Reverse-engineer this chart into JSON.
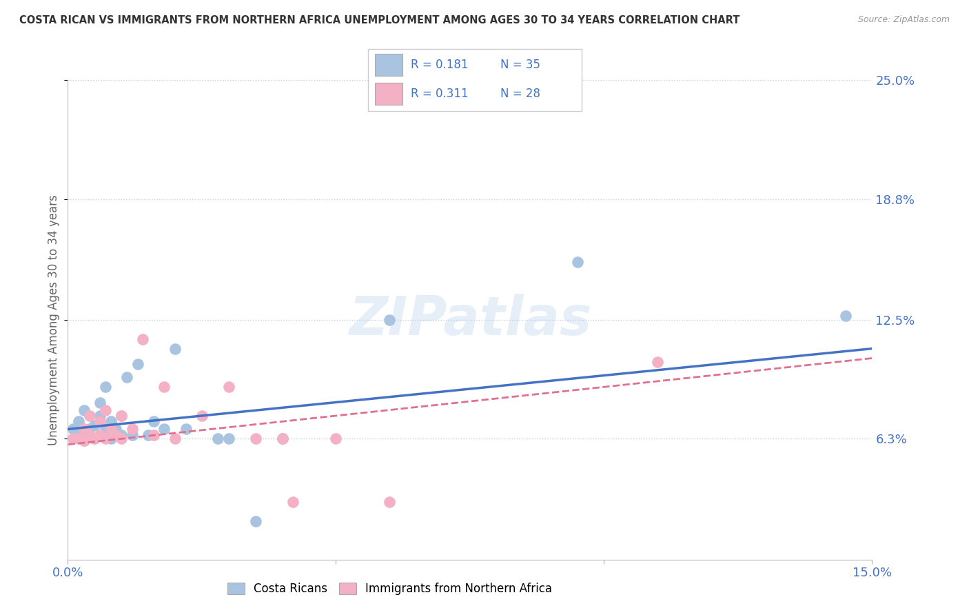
{
  "title": "COSTA RICAN VS IMMIGRANTS FROM NORTHERN AFRICA UNEMPLOYMENT AMONG AGES 30 TO 34 YEARS CORRELATION CHART",
  "source": "Source: ZipAtlas.com",
  "ylabel": "Unemployment Among Ages 30 to 34 years",
  "xmin": 0.0,
  "xmax": 0.15,
  "ymin": 0.0,
  "ymax": 0.25,
  "yticks": [
    0.063,
    0.125,
    0.188,
    0.25
  ],
  "ytick_labels": [
    "6.3%",
    "12.5%",
    "18.8%",
    "25.0%"
  ],
  "xticks": [
    0.0,
    0.05,
    0.1,
    0.15
  ],
  "xtick_labels": [
    "0.0%",
    "",
    "",
    "15.0%"
  ],
  "series1_color": "#a8c4e0",
  "series2_color": "#f4b0c4",
  "line1_color": "#4472c4",
  "line2_color": "#e07090",
  "background_color": "#ffffff",
  "blue_scatter_x": [
    0.001,
    0.001,
    0.002,
    0.002,
    0.003,
    0.003,
    0.003,
    0.004,
    0.005,
    0.005,
    0.006,
    0.006,
    0.007,
    0.007,
    0.008,
    0.008,
    0.009,
    0.009,
    0.01,
    0.01,
    0.011,
    0.012,
    0.013,
    0.015,
    0.016,
    0.018,
    0.02,
    0.022,
    0.028,
    0.03,
    0.035,
    0.04,
    0.06,
    0.095,
    0.145
  ],
  "blue_scatter_y": [
    0.068,
    0.063,
    0.065,
    0.072,
    0.062,
    0.065,
    0.078,
    0.068,
    0.063,
    0.07,
    0.075,
    0.082,
    0.068,
    0.09,
    0.063,
    0.072,
    0.065,
    0.068,
    0.065,
    0.075,
    0.095,
    0.065,
    0.102,
    0.065,
    0.072,
    0.068,
    0.11,
    0.068,
    0.063,
    0.063,
    0.02,
    0.063,
    0.125,
    0.155,
    0.127
  ],
  "pink_scatter_x": [
    0.001,
    0.002,
    0.003,
    0.003,
    0.004,
    0.004,
    0.005,
    0.006,
    0.006,
    0.007,
    0.007,
    0.008,
    0.009,
    0.01,
    0.01,
    0.012,
    0.014,
    0.016,
    0.018,
    0.02,
    0.025,
    0.03,
    0.035,
    0.04,
    0.042,
    0.05,
    0.06,
    0.11
  ],
  "pink_scatter_y": [
    0.063,
    0.063,
    0.062,
    0.068,
    0.065,
    0.075,
    0.063,
    0.065,
    0.072,
    0.063,
    0.078,
    0.068,
    0.065,
    0.063,
    0.075,
    0.068,
    0.115,
    0.065,
    0.09,
    0.063,
    0.075,
    0.09,
    0.063,
    0.063,
    0.03,
    0.063,
    0.03,
    0.103
  ],
  "line1_x_start": 0.0,
  "line1_x_end": 0.15,
  "line1_y_start": 0.068,
  "line1_y_end": 0.11,
  "line2_x_start": 0.0,
  "line2_x_end": 0.15,
  "line2_y_start": 0.06,
  "line2_y_end": 0.105
}
